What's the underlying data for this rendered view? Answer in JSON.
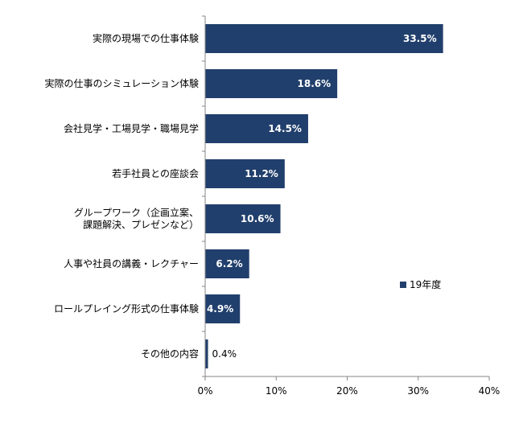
{
  "chart_data": {
    "type": "bar",
    "orientation": "horizontal",
    "categories": [
      [
        "実際の現場での仕事体験"
      ],
      [
        "実際の仕事のシミュレーション体験"
      ],
      [
        "会社見学・工場見学・職場見学"
      ],
      [
        "若手社員との座談会"
      ],
      [
        "グループワーク（企画立案、",
        "課題解決、プレゼンなど）"
      ],
      [
        "人事や社員の講義・レクチャー"
      ],
      [
        "ロールプレイング形式の仕事体験"
      ],
      [
        "その他の内容"
      ]
    ],
    "series": [
      {
        "name": "19年度",
        "values": [
          33.5,
          18.6,
          14.5,
          11.2,
          10.6,
          6.2,
          4.9,
          0.4
        ],
        "value_labels": [
          "33.5%",
          "18.6%",
          "14.5%",
          "11.2%",
          "10.6%",
          "6.2%",
          "4.9%",
          "0.4%"
        ],
        "color": "#213F6C"
      }
    ],
    "xlim": [
      0,
      40
    ],
    "x_ticks": [
      0,
      10,
      20,
      30,
      40
    ],
    "x_tick_labels": [
      "0%",
      "10%",
      "20%",
      "30%",
      "40%"
    ],
    "grid": false,
    "legend_position": "right"
  }
}
